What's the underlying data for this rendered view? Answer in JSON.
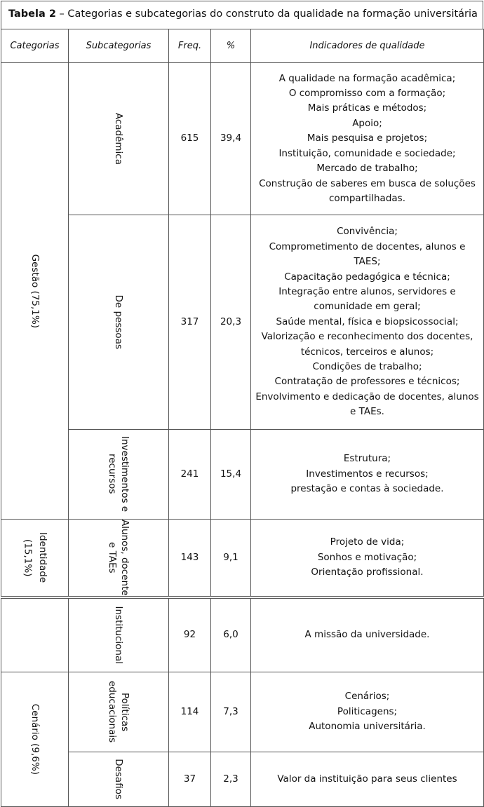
{
  "table": {
    "title_label": "Tabela 2",
    "title_text": " – Categorias e subcategorias do construto da qualidade na formação universitária",
    "headers": [
      "Categorias",
      "Subcategorias",
      "Freq.",
      "%",
      "Indicadores de qualidade"
    ],
    "categories": [
      {
        "label": "Gestão (75,1%)"
      },
      {
        "label": "Identidade (15,1%)"
      },
      {
        "label": ""
      },
      {
        "label": "Cenário (9,6%)"
      }
    ],
    "rows": [
      {
        "subcategory": "Acadêmica",
        "freq": "615",
        "pct": "39,4",
        "indicators": [
          "A qualidade na formação acadêmica;",
          "O compromisso com a formação;",
          "Mais práticas e métodos;",
          "Apoio;",
          "Mais pesquisa e projetos;",
          "Instituição, comunidade e sociedade;",
          "Mercado de trabalho;",
          "Construção de saberes em busca de soluções compartilhadas."
        ]
      },
      {
        "subcategory": "De pessoas",
        "freq": "317",
        "pct": "20,3",
        "indicators": [
          "Convivência;",
          "Comprometimento de docentes, alunos e TAES;",
          "Capacitação pedagógica e técnica;",
          "Integração entre alunos, servidores e comunidade em geral;",
          "Saúde mental, física e biopsicossocial;",
          "Valorização e reconhecimento dos docentes, técnicos, terceiros e alunos;",
          "Condições de trabalho;",
          "Contratação de professores e técnicos;",
          "Envolvimento e dedicação de docentes, alunos e TAEs."
        ]
      },
      {
        "subcategory": "Investimentos e recursos",
        "freq": "241",
        "pct": "15,4",
        "indicators": [
          "Estrutura;",
          "Investimentos e recursos;",
          "prestação e contas à sociedade."
        ]
      },
      {
        "subcategory": "Alunos, docente e TAEs",
        "freq": "143",
        "pct": "9,1",
        "indicators": [
          "Projeto de vida;",
          "Sonhos e motivação;",
          "Orientação profissional."
        ]
      },
      {
        "subcategory": "Institucional",
        "freq": "92",
        "pct": "6,0",
        "indicators": [
          "A missão da universidade."
        ]
      },
      {
        "subcategory": "Políticas educacionais",
        "freq": "114",
        "pct": "7,3",
        "indicators": [
          "Cenários;",
          "Politicagens;",
          "Autonomia universitária."
        ]
      },
      {
        "subcategory": "Desafios",
        "freq": "37",
        "pct": "2,3",
        "indicators": [
          "Valor da instituição para seus clientes"
        ]
      }
    ]
  }
}
